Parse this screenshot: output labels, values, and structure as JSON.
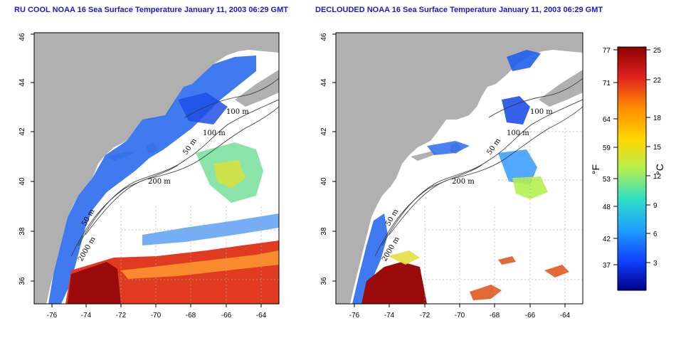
{
  "maps": [
    {
      "title": "RU COOL NOAA 16 Sea Surface Temperature January 11, 2003 06:29 GMT",
      "lat_ticks": [
        "36",
        "38",
        "40",
        "42",
        "44",
        "46"
      ],
      "lon_ticks": [
        "-76",
        "-74",
        "-72",
        "-70",
        "-68",
        "-66",
        "-64"
      ],
      "contour_labels": [
        "100 m",
        "100 m",
        "50 m",
        "200 m",
        "50 m",
        "2000 m"
      ]
    },
    {
      "title": "DECLOUDED NOAA 16 Sea Surface Temperature January 11, 2003 06:29 GMT",
      "lat_ticks": [
        "36",
        "38",
        "40",
        "42",
        "44",
        "46"
      ],
      "lon_ticks": [
        "-76",
        "-74",
        "-72",
        "-70",
        "-68",
        "-66",
        "-64"
      ],
      "contour_labels": [
        "100 m",
        "100 m",
        "50 m",
        "200 m",
        "50 m",
        "2000 m"
      ]
    }
  ],
  "colorbar": {
    "fahrenheit_ticks": [
      "77",
      "71",
      "64",
      "59",
      "53",
      "48",
      "42",
      "37"
    ],
    "celsius_ticks": [
      "25",
      "22",
      "18",
      "15",
      "12",
      "9",
      "6",
      "3"
    ],
    "fahrenheit_unit": "°F",
    "celsius_unit": "°C",
    "colors": [
      "#8b0000",
      "#e02020",
      "#ff8c00",
      "#ffd700",
      "#b5f050",
      "#30e0c0",
      "#20a0ff",
      "#1040ff",
      "#00008b"
    ]
  },
  "colors": {
    "land": "#b0b0b0",
    "ocean": "#ffffff",
    "title": "#1a1acc",
    "grid": "#aaaaaa"
  }
}
